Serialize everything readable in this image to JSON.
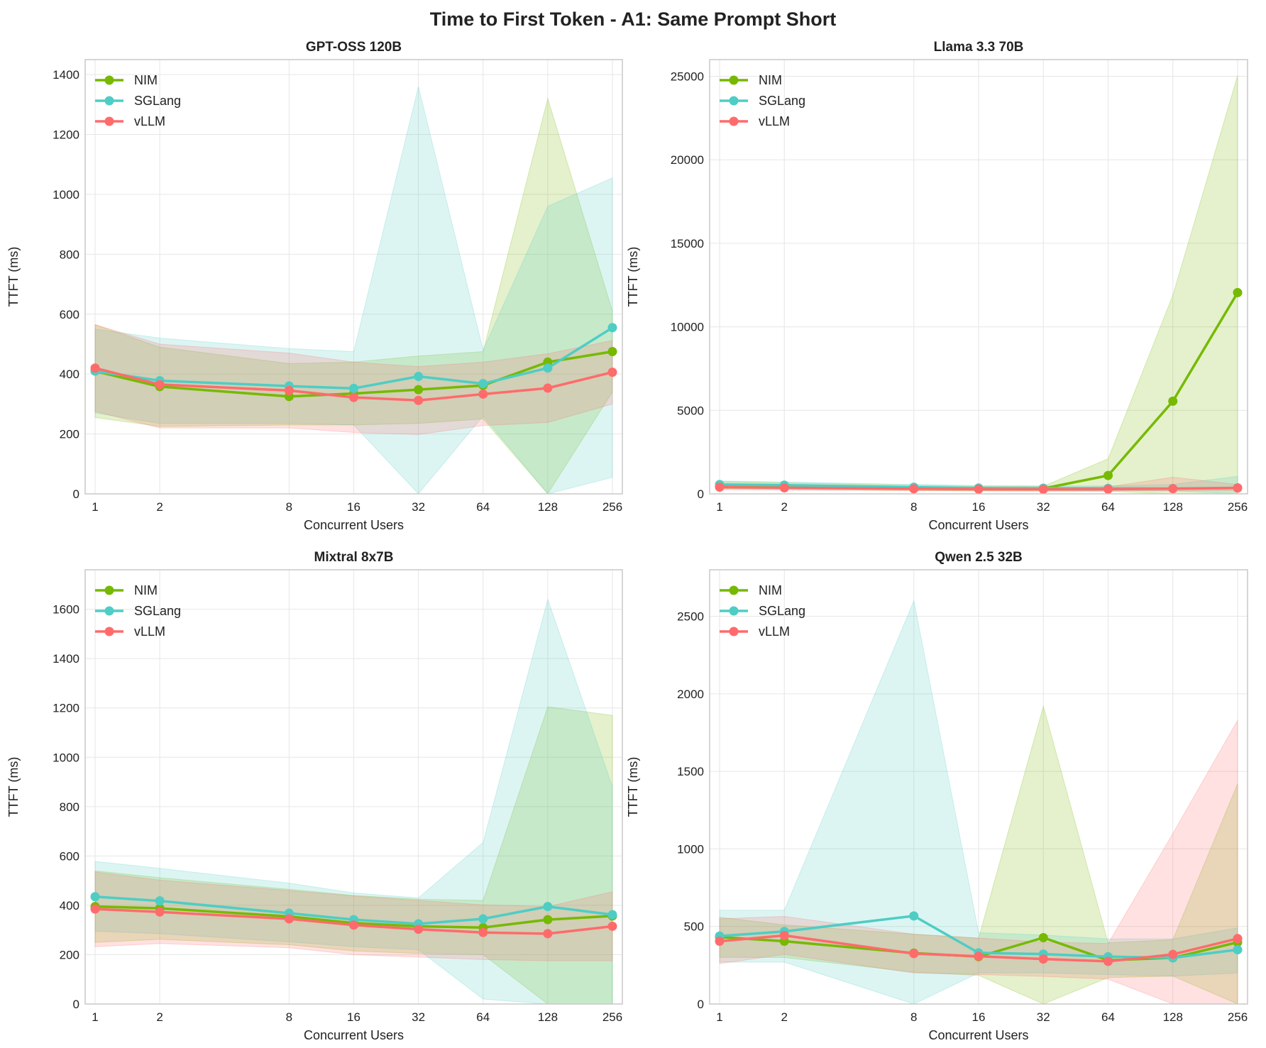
{
  "figure": {
    "title": "Time to First Token - A1: Same Prompt Short",
    "colors": {
      "NIM": "#76b900",
      "SGLang": "#4ecdc4",
      "vLLM": "#ff6b6b"
    }
  },
  "chart_data": [
    {
      "type": "line",
      "title": "GPT-OSS 120B",
      "xlabel": "Concurrent Users",
      "ylabel": "TTFT (ms)",
      "xscale": "log2",
      "x": [
        1,
        2,
        8,
        16,
        32,
        64,
        128,
        256
      ],
      "x_tick_labels": [
        "1",
        "2",
        "8",
        "16",
        "32",
        "64",
        "128",
        "256"
      ],
      "ylim": [
        0,
        1450
      ],
      "yticks": [
        0,
        200,
        400,
        600,
        800,
        1000,
        1200,
        1400
      ],
      "legend": "top-left",
      "grid": true,
      "series": [
        {
          "name": "NIM",
          "values": [
            410,
            358,
            325,
            335,
            348,
            362,
            440,
            475
          ],
          "lower": [
            255,
            225,
            230,
            230,
            235,
            250,
            0,
            340
          ],
          "upper": [
            565,
            490,
            435,
            440,
            460,
            475,
            1320,
            610
          ]
        },
        {
          "name": "SGLang",
          "values": [
            410,
            378,
            360,
            352,
            392,
            368,
            420,
            555
          ],
          "lower": [
            270,
            235,
            235,
            230,
            0,
            260,
            0,
            55
          ],
          "upper": [
            550,
            520,
            485,
            475,
            1360,
            480,
            960,
            1055
          ]
        },
        {
          "name": "vLLM",
          "values": [
            420,
            365,
            345,
            322,
            312,
            333,
            353,
            406
          ],
          "lower": [
            275,
            220,
            220,
            205,
            198,
            228,
            238,
            300
          ],
          "upper": [
            565,
            500,
            470,
            440,
            425,
            440,
            468,
            512
          ]
        }
      ]
    },
    {
      "type": "line",
      "title": "Llama 3.3 70B",
      "xlabel": "Concurrent Users",
      "ylabel": "TTFT (ms)",
      "xscale": "log2",
      "x": [
        1,
        2,
        8,
        16,
        32,
        64,
        128,
        256
      ],
      "x_tick_labels": [
        "1",
        "2",
        "8",
        "16",
        "32",
        "64",
        "128",
        "256"
      ],
      "ylim": [
        0,
        26000
      ],
      "yticks": [
        0,
        5000,
        10000,
        15000,
        20000,
        25000
      ],
      "legend": "top-left",
      "grid": true,
      "series": [
        {
          "name": "NIM",
          "values": [
            520,
            470,
            360,
            320,
            320,
            1100,
            5550,
            12050
          ],
          "lower": [
            300,
            280,
            200,
            180,
            180,
            150,
            0,
            0
          ],
          "upper": [
            740,
            660,
            520,
            460,
            460,
            2100,
            11900,
            25050
          ]
        },
        {
          "name": "SGLang",
          "values": [
            560,
            520,
            400,
            350,
            340,
            330,
            320,
            360
          ],
          "lower": [
            350,
            320,
            260,
            230,
            220,
            200,
            180,
            0
          ],
          "upper": [
            770,
            720,
            560,
            500,
            480,
            480,
            560,
            1050
          ]
        },
        {
          "name": "vLLM",
          "values": [
            400,
            360,
            300,
            280,
            270,
            280,
            310,
            350
          ],
          "lower": [
            250,
            220,
            190,
            170,
            160,
            170,
            180,
            200
          ],
          "upper": [
            560,
            500,
            420,
            400,
            380,
            420,
            1000,
            560
          ]
        }
      ]
    },
    {
      "type": "line",
      "title": "Mixtral 8x7B",
      "xlabel": "Concurrent Users",
      "ylabel": "TTFT (ms)",
      "xscale": "log2",
      "x": [
        1,
        2,
        8,
        16,
        32,
        64,
        128,
        256
      ],
      "x_tick_labels": [
        "1",
        "2",
        "8",
        "16",
        "32",
        "64",
        "128",
        "256"
      ],
      "ylim": [
        0,
        1760
      ],
      "yticks": [
        0,
        200,
        400,
        600,
        800,
        1000,
        1200,
        1400,
        1600
      ],
      "legend": "top-left",
      "grid": true,
      "series": [
        {
          "name": "NIM",
          "values": [
            395,
            388,
            355,
            328,
            315,
            310,
            342,
            357
          ],
          "lower": [
            250,
            262,
            240,
            215,
            205,
            200,
            0,
            0
          ],
          "upper": [
            540,
            512,
            465,
            440,
            425,
            420,
            1205,
            1170
          ]
        },
        {
          "name": "SGLang",
          "values": [
            435,
            418,
            368,
            342,
            325,
            345,
            395,
            362
          ],
          "lower": [
            295,
            285,
            252,
            232,
            220,
            20,
            0,
            0
          ],
          "upper": [
            578,
            550,
            490,
            450,
            430,
            655,
            1640,
            880
          ]
        },
        {
          "name": "vLLM",
          "values": [
            385,
            373,
            345,
            320,
            303,
            290,
            285,
            315
          ],
          "lower": [
            232,
            245,
            228,
            200,
            190,
            180,
            175,
            175
          ],
          "upper": [
            535,
            502,
            460,
            438,
            420,
            402,
            395,
            455
          ]
        }
      ]
    },
    {
      "type": "line",
      "title": "Qwen 2.5 32B",
      "xlabel": "Concurrent Users",
      "ylabel": "TTFT (ms)",
      "xscale": "log2",
      "x": [
        1,
        2,
        8,
        16,
        32,
        64,
        128,
        256
      ],
      "x_tick_labels": [
        "1",
        "2",
        "8",
        "16",
        "32",
        "64",
        "128",
        "256"
      ],
      "ylim": [
        0,
        2800
      ],
      "yticks": [
        0,
        500,
        1000,
        1500,
        2000,
        2500
      ],
      "legend": "top-left",
      "grid": true,
      "series": [
        {
          "name": "NIM",
          "values": [
            432,
            405,
            328,
            305,
            428,
            282,
            298,
            398
          ],
          "lower": [
            300,
            300,
            205,
            185,
            0,
            170,
            180,
            0
          ],
          "upper": [
            560,
            510,
            450,
            425,
            1920,
            395,
            415,
            1420
          ]
        },
        {
          "name": "SGLang",
          "values": [
            438,
            468,
            568,
            330,
            322,
            305,
            298,
            350
          ],
          "lower": [
            270,
            270,
            0,
            200,
            200,
            190,
            180,
            200
          ],
          "upper": [
            605,
            605,
            2600,
            460,
            445,
            420,
            420,
            490
          ]
        },
        {
          "name": "vLLM",
          "values": [
            405,
            442,
            325,
            308,
            290,
            275,
            320,
            422
          ],
          "lower": [
            260,
            320,
            200,
            190,
            178,
            160,
            0,
            0
          ],
          "upper": [
            550,
            565,
            450,
            425,
            400,
            390,
            1100,
            1830
          ]
        }
      ]
    }
  ]
}
